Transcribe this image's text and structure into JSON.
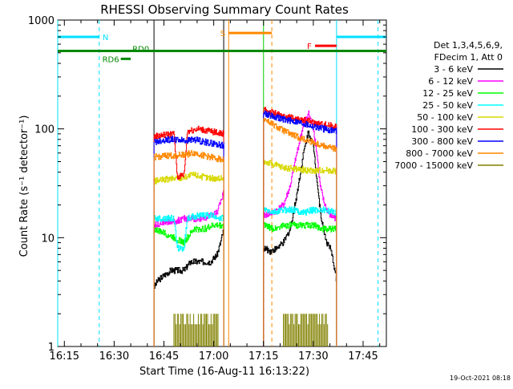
{
  "chart_data": {
    "type": "line",
    "title": "RHESSI Observing Summary Count Rates",
    "xlabel": "Start Time (16-Aug-11 16:13:22)",
    "ylabel": "Count Rate (s⁻¹ detector⁻¹)",
    "y_scale": "log",
    "ylim": [
      1,
      1000
    ],
    "xlim_minutes": [
      -2,
      97
    ],
    "x_ticks": [
      {
        "label": "16:15",
        "t": 0
      },
      {
        "label": "16:30",
        "t": 15
      },
      {
        "label": "16:45",
        "t": 30
      },
      {
        "label": "17:00",
        "t": 45
      },
      {
        "label": "17:15",
        "t": 60
      },
      {
        "label": "17:30",
        "t": 75
      },
      {
        "label": "17:45",
        "t": 90
      }
    ],
    "y_ticks": [
      {
        "label": "1",
        "v": 1
      },
      {
        "label": "10",
        "v": 10
      },
      {
        "label": "100",
        "v": 100
      },
      {
        "label": "1000",
        "v": 1000
      }
    ],
    "timestamp": "19-Oct-2021 08:18",
    "legend_header": [
      "Det 1,3,4,5,6,9,",
      "FDecim 1, Att 0"
    ],
    "series": [
      {
        "name": "3 - 6 keV",
        "color": "#000000",
        "seg1": [
          [
            27,
            3.5
          ],
          [
            28,
            4
          ],
          [
            30,
            4.5
          ],
          [
            32,
            5
          ],
          [
            34,
            5
          ],
          [
            36,
            5
          ],
          [
            38,
            6
          ],
          [
            40,
            6
          ],
          [
            42,
            6
          ],
          [
            44,
            6
          ],
          [
            46,
            7
          ],
          [
            47,
            9
          ],
          [
            48,
            12
          ]
        ],
        "seg2": [
          [
            60,
            8
          ],
          [
            62,
            7.5
          ],
          [
            64,
            8
          ],
          [
            66,
            9
          ],
          [
            68,
            12
          ],
          [
            70,
            25
          ],
          [
            72,
            60
          ],
          [
            73.5,
            95
          ],
          [
            75,
            70
          ],
          [
            76,
            35
          ],
          [
            77,
            18
          ],
          [
            78,
            12
          ],
          [
            79,
            9
          ],
          [
            80,
            8
          ],
          [
            81,
            6
          ],
          [
            82,
            4
          ]
        ]
      },
      {
        "name": "6 - 12 keV",
        "color": "#ff00ff",
        "seg1": [
          [
            27,
            13
          ],
          [
            30,
            14
          ],
          [
            33,
            14
          ],
          [
            36,
            15
          ],
          [
            39,
            15
          ],
          [
            42,
            15
          ],
          [
            44,
            16
          ],
          [
            46,
            17
          ],
          [
            47,
            22
          ],
          [
            48,
            26
          ]
        ],
        "seg2": [
          [
            60,
            16
          ],
          [
            63,
            17
          ],
          [
            66,
            20
          ],
          [
            68,
            30
          ],
          [
            70,
            60
          ],
          [
            72,
            110
          ],
          [
            73.5,
            140
          ],
          [
            75,
            100
          ],
          [
            76,
            60
          ],
          [
            77,
            30
          ],
          [
            78,
            22
          ],
          [
            79,
            18
          ],
          [
            80,
            16
          ],
          [
            82,
            15
          ]
        ]
      },
      {
        "name": "12 - 25 keV",
        "color": "#00ff00",
        "seg1": [
          [
            27,
            12
          ],
          [
            30,
            11
          ],
          [
            33,
            10
          ],
          [
            36,
            9
          ],
          [
            39,
            12
          ],
          [
            42,
            12
          ],
          [
            45,
            13
          ],
          [
            48,
            13
          ]
        ],
        "seg2": [
          [
            60,
            13
          ],
          [
            63,
            12
          ],
          [
            66,
            13
          ],
          [
            69,
            13
          ],
          [
            72,
            13
          ],
          [
            75,
            13
          ],
          [
            78,
            12
          ],
          [
            82,
            12
          ]
        ]
      },
      {
        "name": "25 - 50 keV",
        "color": "#00ffff",
        "seg1": [
          [
            27,
            15
          ],
          [
            30,
            15
          ],
          [
            33,
            15
          ],
          [
            34,
            8
          ],
          [
            36,
            8
          ],
          [
            37,
            15
          ],
          [
            40,
            16
          ],
          [
            44,
            16
          ],
          [
            48,
            15
          ]
        ],
        "seg2": [
          [
            60,
            18
          ],
          [
            63,
            17
          ],
          [
            66,
            18
          ],
          [
            69,
            18
          ],
          [
            72,
            17
          ],
          [
            75,
            18
          ],
          [
            78,
            18
          ],
          [
            82,
            17
          ]
        ]
      },
      {
        "name": "50 - 100 keV",
        "color": "#d8d800",
        "seg1": [
          [
            27,
            33
          ],
          [
            30,
            34
          ],
          [
            33,
            35
          ],
          [
            36,
            36
          ],
          [
            39,
            38
          ],
          [
            42,
            36
          ],
          [
            45,
            35
          ],
          [
            48,
            35
          ]
        ],
        "seg2": [
          [
            60,
            50
          ],
          [
            63,
            47
          ],
          [
            66,
            44
          ],
          [
            69,
            43
          ],
          [
            72,
            42
          ],
          [
            75,
            41
          ],
          [
            78,
            42
          ],
          [
            82,
            41
          ]
        ]
      },
      {
        "name": "100 - 300 keV",
        "color": "#ff0000",
        "seg1": [
          [
            27,
            85
          ],
          [
            30,
            88
          ],
          [
            33,
            90
          ],
          [
            34,
            36
          ],
          [
            36,
            38
          ],
          [
            37,
            95
          ],
          [
            40,
            100
          ],
          [
            44,
            95
          ],
          [
            48,
            90
          ]
        ],
        "seg2": [
          [
            60,
            150
          ],
          [
            63,
            140
          ],
          [
            66,
            130
          ],
          [
            69,
            125
          ],
          [
            72,
            120
          ],
          [
            75,
            115
          ],
          [
            78,
            110
          ],
          [
            82,
            105
          ]
        ]
      },
      {
        "name": "300 - 800 keV",
        "color": "#0000ff",
        "seg1": [
          [
            27,
            76
          ],
          [
            30,
            79
          ],
          [
            33,
            80
          ],
          [
            36,
            78
          ],
          [
            39,
            80
          ],
          [
            42,
            76
          ],
          [
            45,
            73
          ],
          [
            48,
            70
          ]
        ],
        "seg2": [
          [
            60,
            140
          ],
          [
            63,
            130
          ],
          [
            66,
            122
          ],
          [
            69,
            118
          ],
          [
            72,
            112
          ],
          [
            75,
            105
          ],
          [
            78,
            100
          ],
          [
            82,
            96
          ]
        ]
      },
      {
        "name": "800 - 7000 keV",
        "color": "#ff8800",
        "seg1": [
          [
            27,
            55
          ],
          [
            30,
            56
          ],
          [
            33,
            57
          ],
          [
            36,
            58
          ],
          [
            39,
            60
          ],
          [
            42,
            57
          ],
          [
            45,
            54
          ],
          [
            48,
            52
          ]
        ],
        "seg2": [
          [
            60,
            125
          ],
          [
            63,
            108
          ],
          [
            66,
            96
          ],
          [
            69,
            87
          ],
          [
            72,
            80
          ],
          [
            75,
            75
          ],
          [
            78,
            70
          ],
          [
            82,
            65
          ]
        ]
      },
      {
        "name": "7000 - 15000 keV",
        "color": "#808000",
        "seg1": [
          [
            36,
            2
          ],
          [
            40,
            2
          ],
          [
            44,
            2
          ]
        ],
        "seg2": [
          [
            69,
            2
          ],
          [
            73,
            2
          ],
          [
            77,
            2
          ]
        ]
      }
    ],
    "annotations": [
      {
        "label": "N",
        "color": "#00e0ff",
        "y": 700,
        "segments": [
          [
            -2,
            10.5
          ],
          [
            82,
            97
          ]
        ]
      },
      {
        "label": "S",
        "color": "#ff8800",
        "y": 760,
        "segments": [
          [
            49.5,
            62.5
          ]
        ]
      },
      {
        "label": "F",
        "color": "#ff0000",
        "y": 580,
        "segments": [
          [
            75.5,
            82
          ]
        ]
      },
      {
        "label": "RD0",
        "color": "#008800",
        "y": 520,
        "segments": [
          [
            -2,
            97
          ]
        ]
      },
      {
        "label": "RD6",
        "color": "#008800",
        "y": 440,
        "segments": [
          [
            17,
            20
          ]
        ]
      }
    ],
    "vlines": [
      {
        "t": 10.5,
        "color": "#00e0ff",
        "style": "dash"
      },
      {
        "t": 94.5,
        "color": "#00e0ff",
        "style": "dash"
      },
      {
        "t": 62.5,
        "color": "#ff8800",
        "style": "dash"
      },
      {
        "t": -2,
        "color": "#00e0ff",
        "style": "solid"
      },
      {
        "t": 82,
        "color": "#00e0ff",
        "style": "solid"
      },
      {
        "t": 49.5,
        "color": "#ff8800",
        "style": "solid"
      },
      {
        "t": 27,
        "color": "#000000",
        "style": "solid"
      },
      {
        "t": 48,
        "color": "#000000",
        "style": "solid"
      },
      {
        "t": 60,
        "color": "#00cc00",
        "style": "solid"
      }
    ]
  }
}
